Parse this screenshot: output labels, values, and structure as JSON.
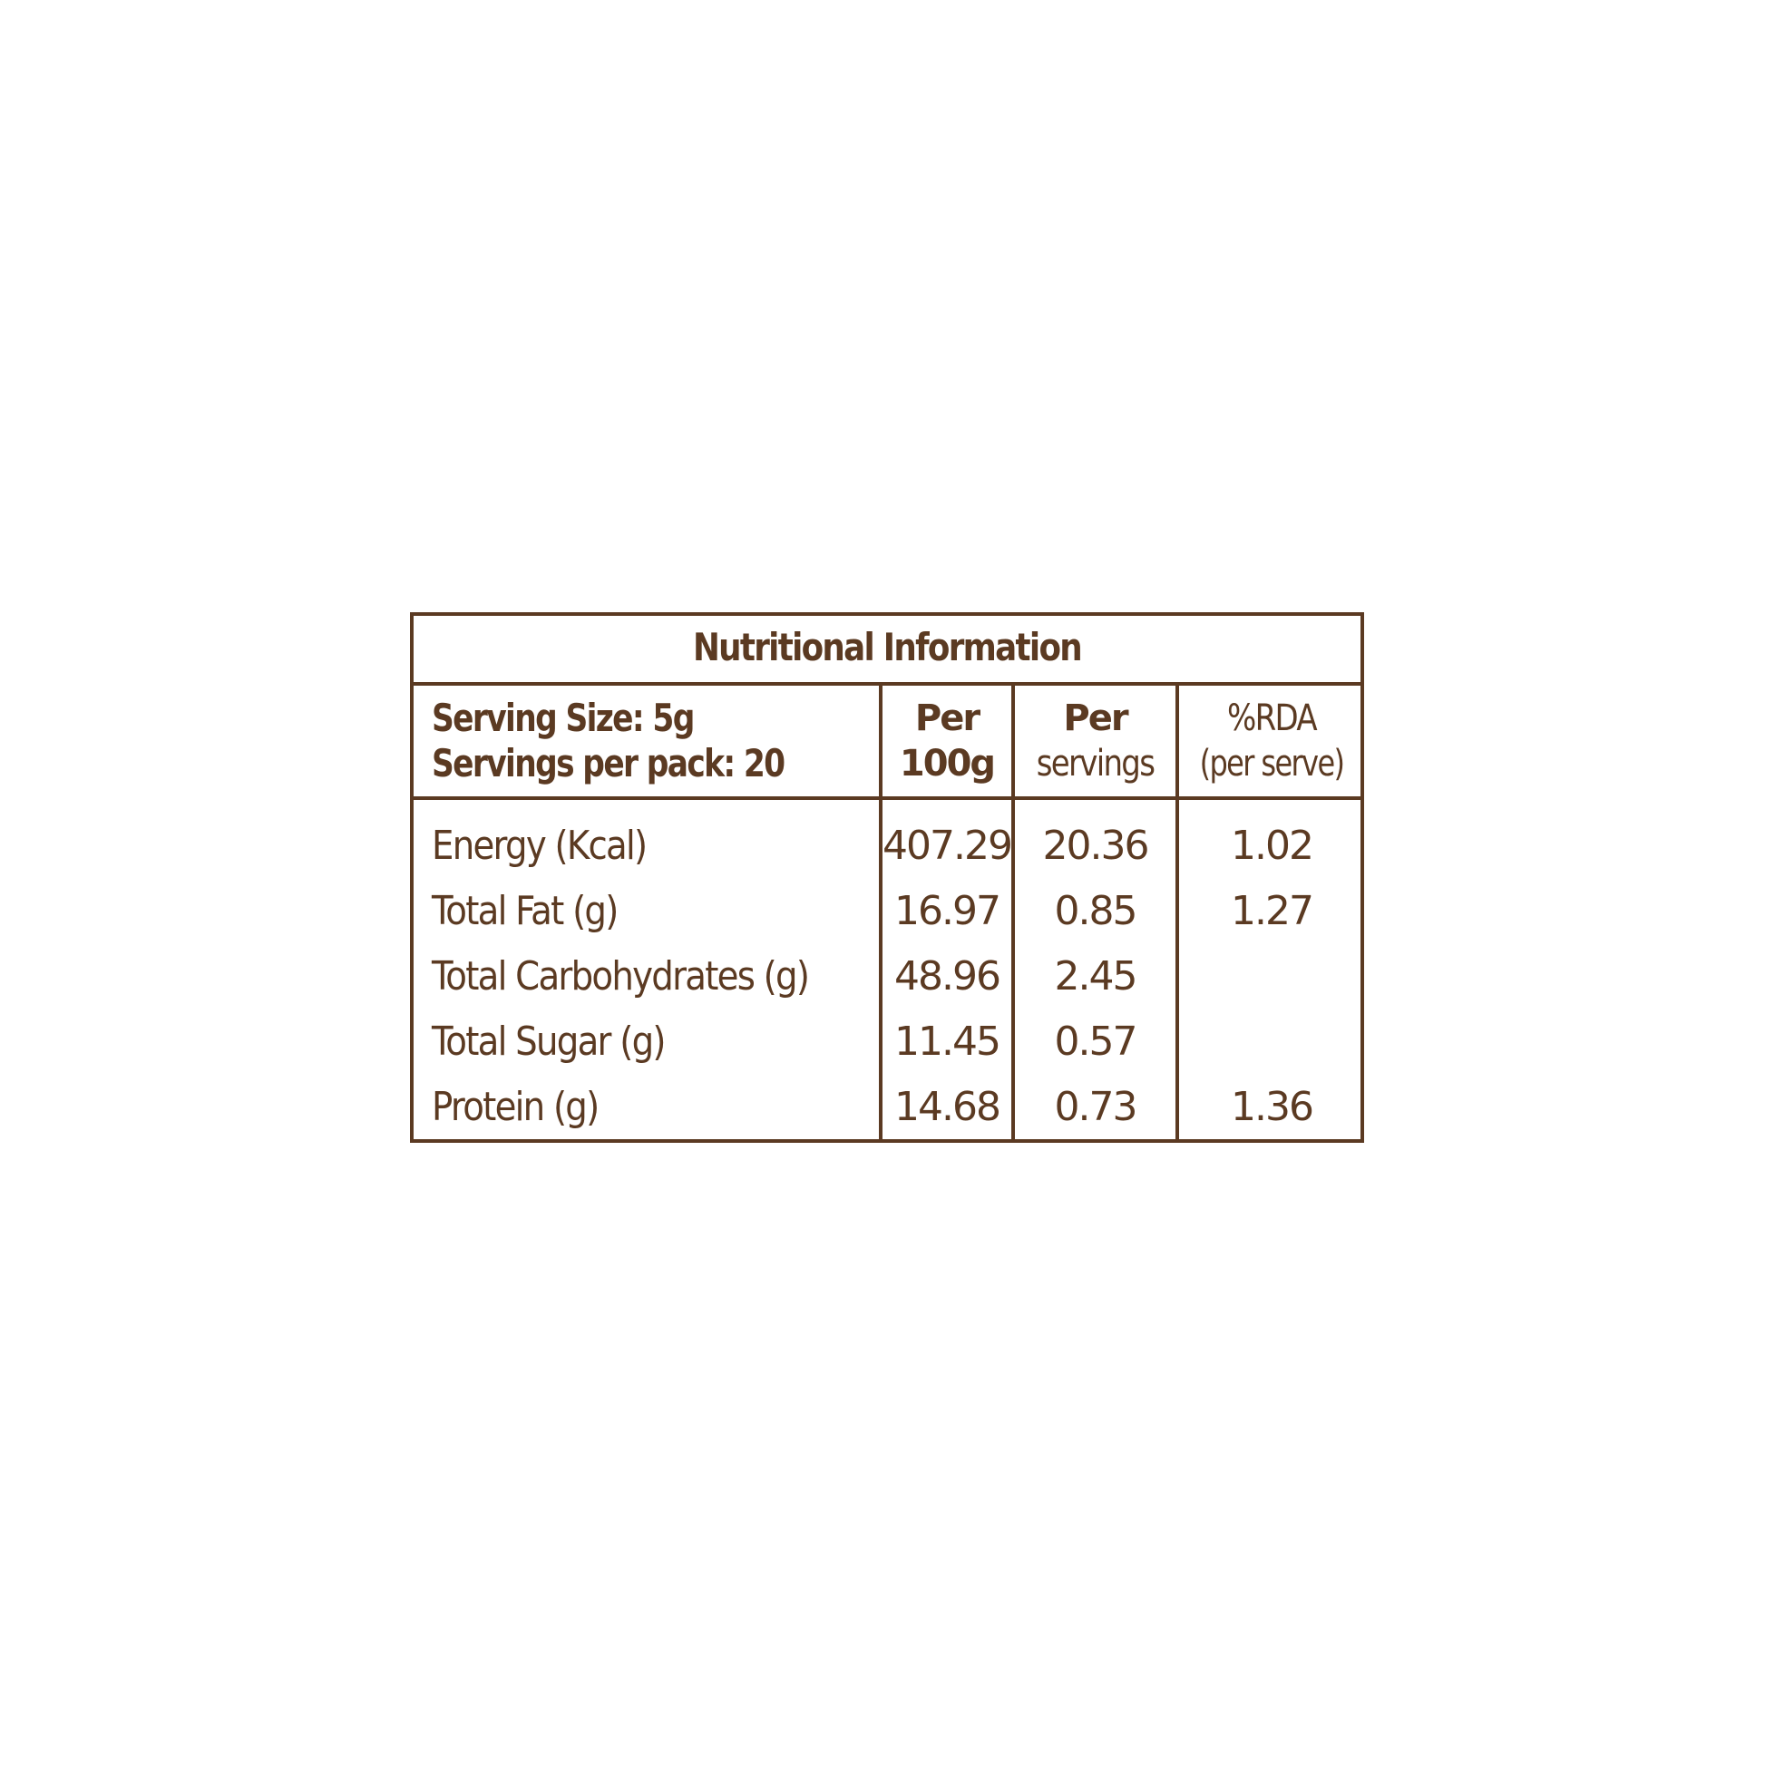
{
  "title": "Nutritional Information",
  "header": {
    "serving_size": "Serving Size: 5g",
    "servings_per_pack": "Servings per pack: 20",
    "col_per100_l1": "Per",
    "col_per100_l2": "100g",
    "col_perserv_l1": "Per",
    "col_perserv_l2": "servings",
    "col_rda_l1": "%RDA",
    "col_rda_l2": "(per serve)"
  },
  "rows": [
    {
      "nutrient": "Energy (Kcal)",
      "per100g": "407.29",
      "per_serving": "20.36",
      "rda": "1.02"
    },
    {
      "nutrient": "Total Fat (g)",
      "per100g": "16.97",
      "per_serving": "0.85",
      "rda": "1.27"
    },
    {
      "nutrient": "Total Carbohydrates (g)",
      "per100g": "48.96",
      "per_serving": "2.45",
      "rda": ""
    },
    {
      "nutrient": "Total Sugar (g)",
      "per100g": "11.45",
      "per_serving": "0.57",
      "rda": ""
    },
    {
      "nutrient": "Protein (g)",
      "per100g": "14.68",
      "per_serving": "0.73",
      "rda": "1.36"
    }
  ],
  "colors": {
    "ink": "#5b3a22",
    "background": "#ffffff"
  }
}
